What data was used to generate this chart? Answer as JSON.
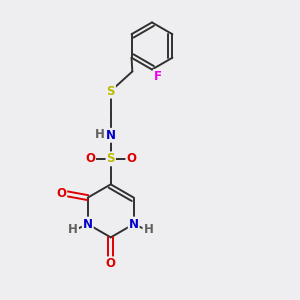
{
  "bg_color": "#eeeef0",
  "atom_colors": {
    "C": "#303030",
    "N": "#0000cc",
    "O": "#dd0000",
    "S": "#bbbb00",
    "F": "#ee00ee",
    "H": "#606060"
  },
  "bond_color": "#303030",
  "font_size": 8.5,
  "fig_size": [
    3.0,
    3.0
  ],
  "dpi": 100
}
